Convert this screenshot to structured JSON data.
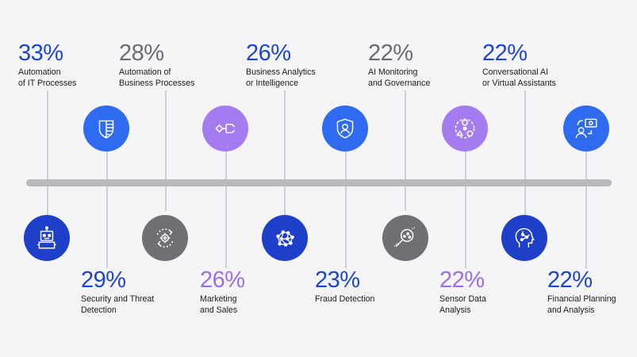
{
  "colors": {
    "blue": "#2f6bf0",
    "navy": "#1e3fc9",
    "gray": "#6f6f75",
    "violet": "#a57cf0",
    "axis": "#b9b9bd",
    "pct_blue": "#1d47c8",
    "pct_gray": "#6b6b70",
    "pct_violet": "#9a6fe8"
  },
  "top_stats": [
    {
      "percent": "33%",
      "line1": "Automation",
      "line2": "of IT Processes",
      "color": "blue"
    },
    {
      "percent": "28%",
      "line1": "Automation of",
      "line2": "Business Processes",
      "color": "gray"
    },
    {
      "percent": "26%",
      "line1": "Business Analytics",
      "line2": "or Intelligence",
      "color": "blue"
    },
    {
      "percent": "22%",
      "line1": "AI Monitoring",
      "line2": "and Governance",
      "color": "gray"
    },
    {
      "percent": "22%",
      "line1": "Conversational AI",
      "line2": "or Virtual Assistants",
      "color": "blue"
    }
  ],
  "bottom_stats": [
    {
      "percent": "29%",
      "line1": "Security and Threat",
      "line2": "Detection",
      "color": "blue"
    },
    {
      "percent": "26%",
      "line1": "Marketing",
      "line2": "and Sales",
      "color": "violet"
    },
    {
      "percent": "23%",
      "line1": "Fraud Detection",
      "line2": "",
      "color": "blue"
    },
    {
      "percent": "22%",
      "line1": "Sensor Data",
      "line2": "Analysis",
      "color": "violet"
    },
    {
      "percent": "22%",
      "line1": "Financial Planning",
      "line2": "and Analysis",
      "color": "blue"
    }
  ],
  "icons_above_axis": [
    {
      "icon": "shield-grid-icon",
      "color": "blue"
    },
    {
      "icon": "flow-arrows-icon",
      "color": "violet"
    },
    {
      "icon": "user-shield-icon",
      "color": "blue"
    },
    {
      "icon": "network-people-icon",
      "color": "violet"
    },
    {
      "icon": "money-exchange-icon",
      "color": "blue"
    }
  ],
  "icons_below_axis": [
    {
      "icon": "robot-icon",
      "color": "navy"
    },
    {
      "icon": "gear-cycle-icon",
      "color": "gray"
    },
    {
      "icon": "neural-brain-icon",
      "color": "navy"
    },
    {
      "icon": "magnifier-data-icon",
      "color": "gray"
    },
    {
      "icon": "ai-head-icon",
      "color": "navy"
    }
  ]
}
